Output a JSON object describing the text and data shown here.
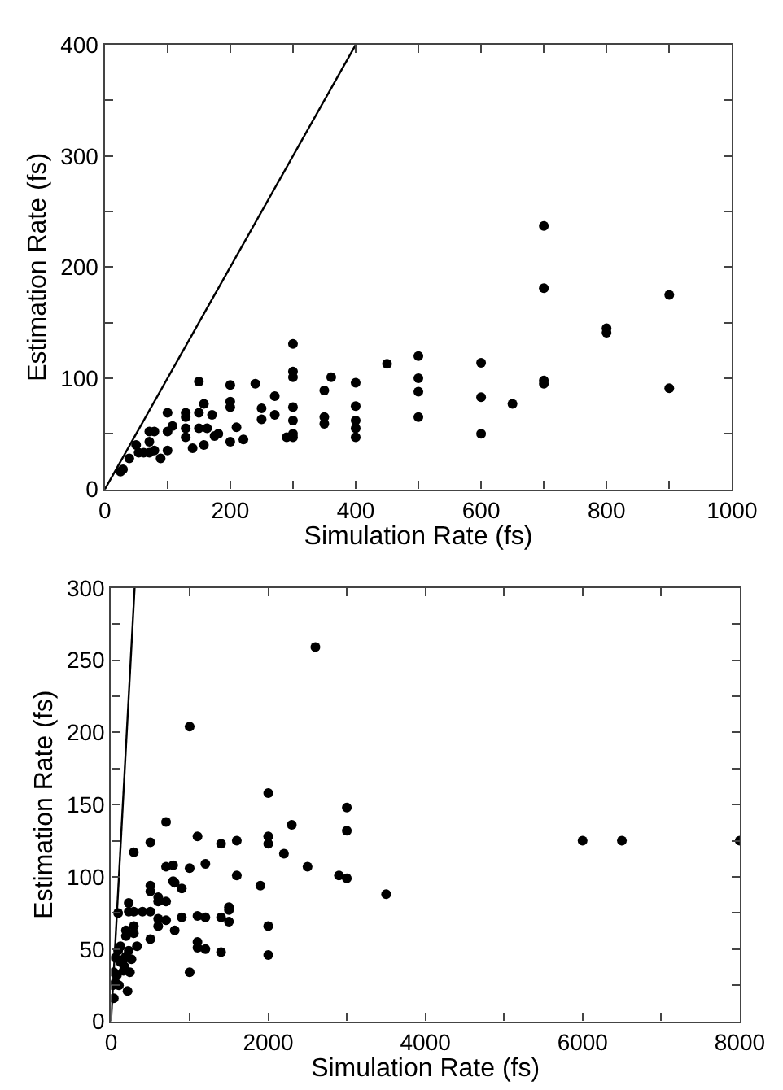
{
  "chart_data": [
    {
      "type": "scatter",
      "xlabel": "Simulation Rate (fs)",
      "ylabel": "Estimation Rate (fs)",
      "xlim": [
        0,
        1000
      ],
      "ylim": [
        0,
        400
      ],
      "xticks": [
        0,
        {
          "value": 100,
          "label": null
        },
        200,
        {
          "value": 300,
          "label": null
        },
        400,
        {
          "value": 500,
          "label": null
        },
        600,
        {
          "value": 700,
          "label": null
        },
        800,
        {
          "value": 900,
          "label": null
        },
        1000
      ],
      "yticks": [
        0,
        {
          "value": 50,
          "label": null
        },
        100,
        {
          "value": 150,
          "label": null
        },
        200,
        {
          "value": 250,
          "label": null
        },
        300,
        {
          "value": 350,
          "label": null
        },
        400
      ],
      "series": [
        {
          "marker": "circle",
          "color": "#000000",
          "x": [
            25,
            29,
            39,
            50,
            54,
            62,
            71,
            71,
            71,
            79,
            79,
            89,
            100,
            100,
            100,
            108,
            129,
            129,
            129,
            129,
            140,
            150,
            150,
            150,
            158,
            158,
            163,
            171,
            175,
            181,
            200,
            200,
            200,
            200,
            210,
            221,
            240,
            250,
            250,
            271,
            271,
            290,
            300,
            300,
            300,
            300,
            300,
            300,
            300,
            361,
            350,
            350,
            350,
            400,
            400,
            400,
            400,
            400,
            450,
            500,
            500,
            500,
            500,
            600,
            600,
            600,
            650,
            700,
            700,
            700,
            700,
            800,
            800,
            900,
            900
          ],
          "values": [
            16,
            18,
            28,
            40,
            33,
            33,
            33,
            43,
            52,
            52,
            35,
            28,
            35,
            52,
            69,
            57,
            69,
            65,
            55,
            47,
            37,
            97,
            69,
            55,
            77,
            40,
            55,
            67,
            48,
            50,
            94,
            79,
            74,
            43,
            56,
            45,
            95,
            73,
            63,
            84,
            67,
            47,
            131,
            106,
            101,
            74,
            62,
            50,
            47,
            101,
            89,
            65,
            59,
            96,
            75,
            62,
            55,
            47,
            113,
            120,
            100,
            88,
            65,
            114,
            83,
            50,
            77,
            237,
            181,
            98,
            95,
            145,
            141,
            175,
            91
          ]
        },
        {
          "type": "line",
          "marker": "none",
          "color": "#000000",
          "x": [
            0,
            400
          ],
          "values": [
            0,
            400
          ]
        }
      ]
    },
    {
      "type": "scatter",
      "xlabel": "Simulation Rate (fs)",
      "ylabel": "Estimation Rate (fs)",
      "xlim": [
        0,
        8000
      ],
      "ylim": [
        0,
        300
      ],
      "xticks": [
        0,
        {
          "value": 1000,
          "label": null
        },
        2000,
        {
          "value": 3000,
          "label": null
        },
        4000,
        {
          "value": 5000,
          "label": null
        },
        6000,
        {
          "value": 7000,
          "label": null
        },
        8000
      ],
      "yticks": [
        0,
        {
          "value": 25,
          "label": null
        },
        50,
        {
          "value": 75,
          "label": null
        },
        100,
        {
          "value": 125,
          "label": null
        },
        150,
        {
          "value": 175,
          "label": null
        },
        200,
        {
          "value": 225,
          "label": null
        },
        250,
        {
          "value": 275,
          "label": null
        },
        300
      ],
      "series": [
        {
          "marker": "circle",
          "color": "#000000",
          "x": [
            1000,
            2600,
            2000,
            3000,
            700,
            3000,
            500,
            290,
            1100,
            1400,
            1600,
            2000,
            2000,
            2300,
            2200,
            2500,
            2900,
            3000,
            1900,
            700,
            790,
            1000,
            1200,
            1600,
            790,
            810,
            900,
            500,
            500,
            600,
            600,
            700,
            225,
            225,
            290,
            400,
            500,
            90,
            700,
            600,
            600,
            810,
            900,
            1100,
            1200,
            1400,
            1500,
            1500,
            1500,
            1100,
            1100,
            1200,
            1400,
            2000,
            2000,
            1000,
            500,
            290,
            290,
            330,
            190,
            190,
            225,
            190,
            120,
            90,
            55,
            170,
            240,
            160,
            210,
            75,
            35,
            55,
            20,
            35,
            100,
            160,
            260,
            120,
            3500,
            6000,
            6500,
            8000
          ],
          "values": [
            204,
            259,
            158,
            148,
            138,
            132,
            124,
            117,
            128,
            123,
            125,
            128,
            123,
            136,
            116,
            107,
            101,
            99,
            94,
            107,
            108,
            106,
            109,
            101,
            97,
            96,
            92,
            94,
            90,
            86,
            83,
            83,
            82,
            76,
            76,
            76,
            76,
            75,
            70,
            71,
            66,
            63,
            72,
            73,
            72,
            72,
            79,
            77,
            69,
            55,
            51,
            50,
            48,
            66,
            46,
            34,
            57,
            66,
            61,
            52,
            63,
            59,
            49,
            45,
            52,
            49,
            44,
            38,
            34,
            35,
            21,
            32,
            34,
            27,
            25,
            16,
            25,
            43,
            43,
            41,
            88,
            125,
            125,
            125
          ]
        },
        {
          "type": "line",
          "marker": "none",
          "color": "#000000",
          "x": [
            0,
            300
          ],
          "values": [
            0,
            300
          ]
        }
      ]
    }
  ]
}
